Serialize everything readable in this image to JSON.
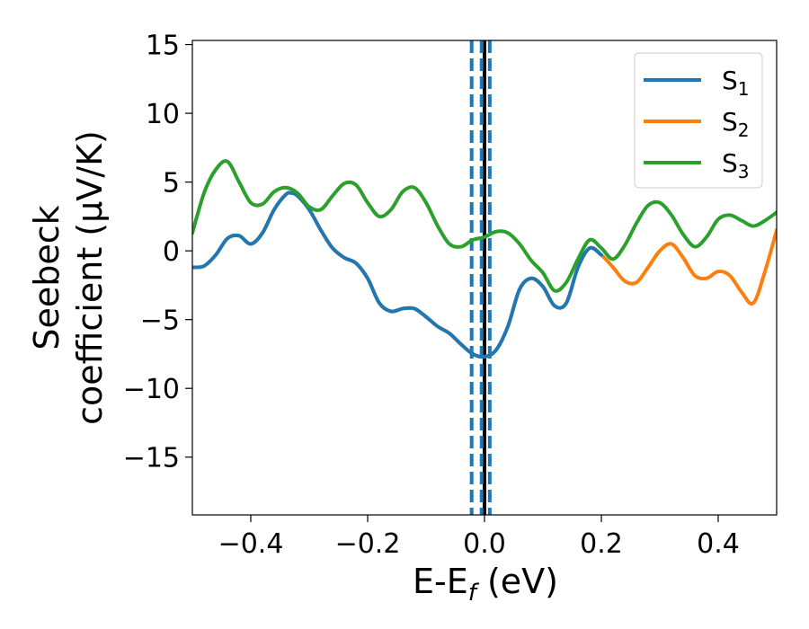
{
  "chart_data": {
    "type": "line",
    "title": "",
    "xlabel": "E-E",
    "xlabel_sub": "f",
    "xlabel_unit": " (eV)",
    "ylabel_line1": "Seebeck",
    "ylabel_line2": "coefficient  (μV/K)",
    "xlim": [
      -0.5,
      0.5
    ],
    "ylim": [
      -19.2,
      15.3
    ],
    "xticks": [
      -0.4,
      -0.2,
      0.0,
      0.2,
      0.4
    ],
    "xtick_labels": [
      "−0.4",
      "−0.2",
      "0.0",
      "0.2",
      "0.4"
    ],
    "yticks": [
      -15,
      -10,
      -5,
      0,
      5,
      10,
      15
    ],
    "ytick_labels": [
      "−15",
      "−10",
      "−5",
      "0",
      "5",
      "10",
      "15"
    ],
    "legend_position": "top-right",
    "reference_lines": [
      {
        "x": 0.0,
        "style": "solid",
        "color": "#000000"
      },
      {
        "x": -0.022,
        "style": "dashed",
        "color": "#1f77b4"
      },
      {
        "x": -0.005,
        "style": "dashed",
        "color": "#1f77b4"
      },
      {
        "x": 0.009,
        "style": "dashed",
        "color": "#1f77b4"
      }
    ],
    "series": [
      {
        "name": "S",
        "sub": "2",
        "color": "#ff7f0e",
        "x": [
          -0.5,
          -0.48,
          -0.46,
          -0.44,
          -0.42,
          -0.4,
          -0.38,
          -0.36,
          -0.34,
          -0.33,
          -0.32,
          -0.3,
          -0.28,
          -0.26,
          -0.24,
          -0.22,
          -0.2,
          -0.18,
          -0.16,
          -0.14,
          -0.12,
          -0.1,
          -0.08,
          -0.06,
          -0.04,
          -0.02,
          0.0,
          0.02,
          0.04,
          0.06,
          0.08,
          0.1,
          0.12,
          0.14,
          0.16,
          0.18,
          0.2,
          0.22,
          0.24,
          0.26,
          0.28,
          0.3,
          0.32,
          0.34,
          0.36,
          0.38,
          0.4,
          0.42,
          0.44,
          0.46,
          0.48,
          0.5
        ],
        "y": [
          -1.2,
          -1.1,
          -0.3,
          0.9,
          1.1,
          0.5,
          1.3,
          3.0,
          4.1,
          4.2,
          4.0,
          3.0,
          1.5,
          0.2,
          -0.5,
          -0.9,
          -2.0,
          -3.8,
          -4.4,
          -4.2,
          -4.2,
          -4.8,
          -5.5,
          -6.0,
          -6.8,
          -7.5,
          -7.7,
          -7.2,
          -5.5,
          -2.8,
          -2.0,
          -2.6,
          -4.0,
          -3.8,
          -1.2,
          0.2,
          -0.3,
          -1.2,
          -2.2,
          -2.3,
          -1.2,
          0.0,
          0.5,
          -0.5,
          -1.8,
          -2.0,
          -1.5,
          -1.8,
          -3.0,
          -3.8,
          -1.5,
          1.5
        ]
      },
      {
        "name": "S",
        "sub": "1",
        "color": "#1f77b4",
        "x": [
          -0.5,
          -0.48,
          -0.46,
          -0.44,
          -0.42,
          -0.4,
          -0.38,
          -0.36,
          -0.34,
          -0.33,
          -0.32,
          -0.3,
          -0.28,
          -0.26,
          -0.24,
          -0.22,
          -0.2,
          -0.18,
          -0.16,
          -0.14,
          -0.12,
          -0.1,
          -0.08,
          -0.06,
          -0.04,
          -0.02,
          0.0,
          0.02,
          0.04,
          0.06,
          0.08,
          0.1,
          0.12,
          0.14,
          0.16,
          0.18,
          0.2
        ],
        "y": [
          -1.2,
          -1.1,
          -0.3,
          0.9,
          1.1,
          0.5,
          1.3,
          3.0,
          4.1,
          4.2,
          4.0,
          3.0,
          1.5,
          0.2,
          -0.5,
          -0.9,
          -2.0,
          -3.8,
          -4.4,
          -4.2,
          -4.2,
          -4.8,
          -5.5,
          -6.0,
          -6.8,
          -7.5,
          -7.7,
          -7.2,
          -5.5,
          -2.8,
          -2.0,
          -2.6,
          -4.0,
          -3.8,
          -1.2,
          0.2,
          -0.3
        ]
      },
      {
        "name": "S",
        "sub": "3",
        "color": "#2ca02c",
        "x": [
          -0.5,
          -0.48,
          -0.46,
          -0.44,
          -0.42,
          -0.4,
          -0.38,
          -0.36,
          -0.34,
          -0.32,
          -0.3,
          -0.28,
          -0.26,
          -0.24,
          -0.22,
          -0.2,
          -0.18,
          -0.16,
          -0.14,
          -0.12,
          -0.1,
          -0.08,
          -0.06,
          -0.04,
          -0.02,
          0.0,
          0.02,
          0.04,
          0.06,
          0.08,
          0.1,
          0.12,
          0.14,
          0.16,
          0.18,
          0.2,
          0.22,
          0.24,
          0.26,
          0.28,
          0.3,
          0.32,
          0.34,
          0.36,
          0.38,
          0.4,
          0.42,
          0.44,
          0.46,
          0.48,
          0.5
        ],
        "y": [
          1.3,
          4.2,
          5.9,
          6.5,
          5.0,
          3.5,
          3.4,
          4.3,
          4.6,
          4.2,
          3.2,
          3.0,
          4.0,
          4.9,
          4.8,
          3.5,
          2.5,
          3.0,
          4.3,
          4.6,
          3.5,
          1.8,
          0.5,
          0.3,
          0.8,
          1.0,
          1.4,
          1.3,
          0.5,
          -0.7,
          -1.6,
          -2.9,
          -2.3,
          -0.6,
          0.8,
          0.2,
          -0.6,
          0.4,
          2.0,
          3.3,
          3.5,
          2.6,
          1.2,
          0.3,
          1.0,
          2.3,
          2.6,
          2.2,
          1.8,
          2.2,
          2.8
        ]
      }
    ]
  }
}
